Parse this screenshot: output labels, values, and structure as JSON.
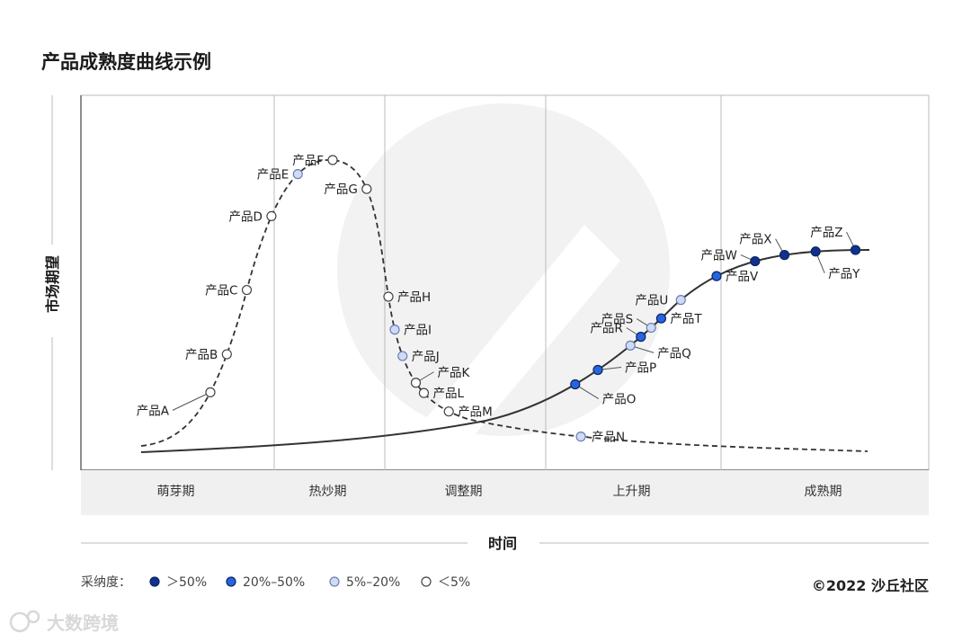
{
  "chart_data": {
    "type": "scatter",
    "title": "产品成熟度曲线示例",
    "xlabel": "时间",
    "ylabel": "市场期望",
    "phases": [
      "萌芽期",
      "热炒期",
      "调整期",
      "上升期",
      "成熟期"
    ],
    "legend": {
      "title": "采纳度：",
      "items": [
        {
          "label": "＞50%",
          "color": "#11328a"
        },
        {
          "label": "20%–50%",
          "color": "#2765df"
        },
        {
          "label": "5%–20%",
          "color": "#cfdaf5"
        },
        {
          "label": "＜5%",
          "color": "#ffffff"
        }
      ]
    },
    "points": [
      {
        "name": "产品A",
        "curve": "hype",
        "t": 0.12,
        "adoption": 3
      },
      {
        "name": "产品B",
        "curve": "hype",
        "t": 0.16,
        "adoption": 3
      },
      {
        "name": "产品C",
        "curve": "hype",
        "t": 0.21,
        "adoption": 3
      },
      {
        "name": "产品D",
        "curve": "hype",
        "t": 0.27,
        "adoption": 3
      },
      {
        "name": "产品E",
        "curve": "hype",
        "t": 0.33,
        "adoption": 2
      },
      {
        "name": "产品F",
        "curve": "hype",
        "t": 0.4,
        "adoption": 3
      },
      {
        "name": "产品G",
        "curve": "hype",
        "t": 0.48,
        "adoption": 3
      },
      {
        "name": "产品H",
        "curve": "hype",
        "t": 0.6,
        "adoption": 3
      },
      {
        "name": "产品I",
        "curve": "hype",
        "t": 0.63,
        "adoption": 2
      },
      {
        "name": "产品J",
        "curve": "hype",
        "t": 0.66,
        "adoption": 2
      },
      {
        "name": "产品K",
        "curve": "hype",
        "t": 0.7,
        "adoption": 3
      },
      {
        "name": "产品L",
        "curve": "hype",
        "t": 0.72,
        "adoption": 3
      },
      {
        "name": "产品M",
        "curve": "hype",
        "t": 0.77,
        "adoption": 3
      },
      {
        "name": "产品N",
        "curve": "hype",
        "t": 0.86,
        "adoption": 2
      },
      {
        "name": "产品O",
        "curve": "slope",
        "t": 0.48,
        "adoption": 1
      },
      {
        "name": "产品P",
        "curve": "slope",
        "t": 0.52,
        "adoption": 1
      },
      {
        "name": "产品Q",
        "curve": "slope",
        "t": 0.58,
        "adoption": 2
      },
      {
        "name": "产品R",
        "curve": "slope",
        "t": 0.6,
        "adoption": 1
      },
      {
        "name": "产品S",
        "curve": "slope",
        "t": 0.62,
        "adoption": 2
      },
      {
        "name": "产品T",
        "curve": "slope",
        "t": 0.64,
        "adoption": 1
      },
      {
        "name": "产品U",
        "curve": "slope",
        "t": 0.68,
        "adoption": 2
      },
      {
        "name": "产品V",
        "curve": "slope",
        "t": 0.75,
        "adoption": 1
      },
      {
        "name": "产品W",
        "curve": "slope",
        "t": 0.82,
        "adoption": 0
      },
      {
        "name": "产品X",
        "curve": "slope",
        "t": 0.87,
        "adoption": 0
      },
      {
        "name": "产品Y",
        "curve": "slope",
        "t": 0.92,
        "adoption": 0
      },
      {
        "name": "产品Z",
        "curve": "slope",
        "t": 0.98,
        "adoption": 0
      }
    ]
  },
  "footer": {
    "copyright": "©2022 沙丘社区",
    "watermark": "大数跨境"
  }
}
